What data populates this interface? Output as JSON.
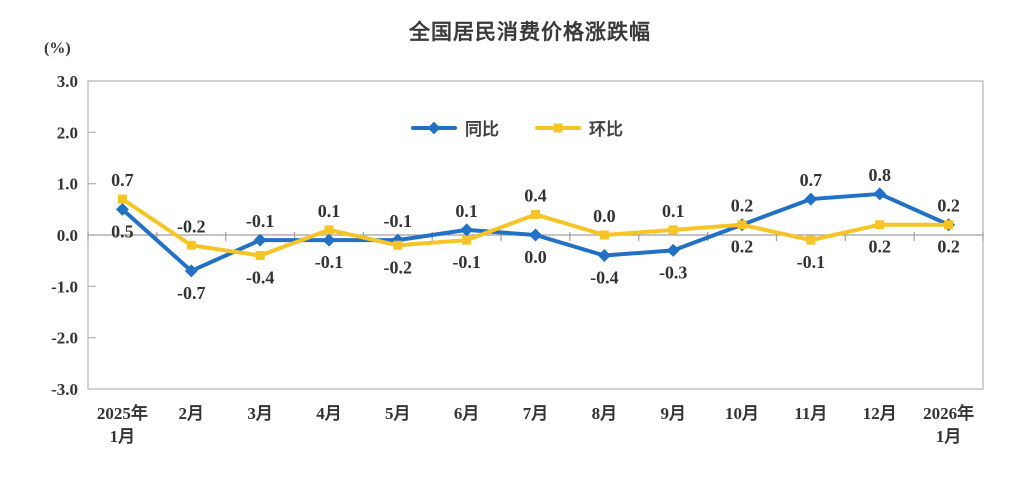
{
  "chart_data": {
    "type": "line",
    "title": "全国居民消费价格涨跌幅",
    "ylabel": "(%)",
    "xlabel": "",
    "ylim": [
      -3.0,
      3.0
    ],
    "y_ticks": [
      3.0,
      2.0,
      1.0,
      0.0,
      -1.0,
      -2.0,
      -3.0
    ],
    "grid": false,
    "legend_position": "top-center-inside",
    "axis_color": "#b3b3b3",
    "zero_axis_color": "#a0a0a0",
    "label_color": "#333333",
    "categories": [
      "2025年1月",
      "2月",
      "3月",
      "4月",
      "5月",
      "6月",
      "7月",
      "8月",
      "9月",
      "10月",
      "11月",
      "12月",
      "2026年1月"
    ],
    "category_lines": [
      [
        "2025年",
        "1月"
      ],
      [
        "2月"
      ],
      [
        "3月"
      ],
      [
        "4月"
      ],
      [
        "5月"
      ],
      [
        "6月"
      ],
      [
        "7月"
      ],
      [
        "8月"
      ],
      [
        "9月"
      ],
      [
        "10月"
      ],
      [
        "11月"
      ],
      [
        "12月"
      ],
      [
        "2026年",
        "1月"
      ]
    ],
    "series": [
      {
        "name": "同比",
        "color": "#2271c4",
        "marker": "diamond",
        "values": [
          0.5,
          -0.7,
          -0.1,
          -0.1,
          -0.1,
          0.1,
          0.0,
          -0.4,
          -0.3,
          0.2,
          0.7,
          0.8,
          0.2
        ],
        "label_pos": [
          "below",
          "below",
          "above",
          "below",
          "above",
          "above",
          "below",
          "below",
          "below",
          "above",
          "above",
          "above",
          "above"
        ]
      },
      {
        "name": "环比",
        "color": "#f7c425",
        "marker": "square",
        "values": [
          0.7,
          -0.2,
          -0.4,
          0.1,
          -0.2,
          -0.1,
          0.4,
          0.0,
          0.1,
          0.2,
          -0.1,
          0.2,
          0.2
        ],
        "label_pos": [
          "above",
          "above",
          "below",
          "above",
          "below",
          "below",
          "above",
          "above",
          "above",
          "below",
          "below",
          "below",
          "below"
        ]
      }
    ]
  }
}
